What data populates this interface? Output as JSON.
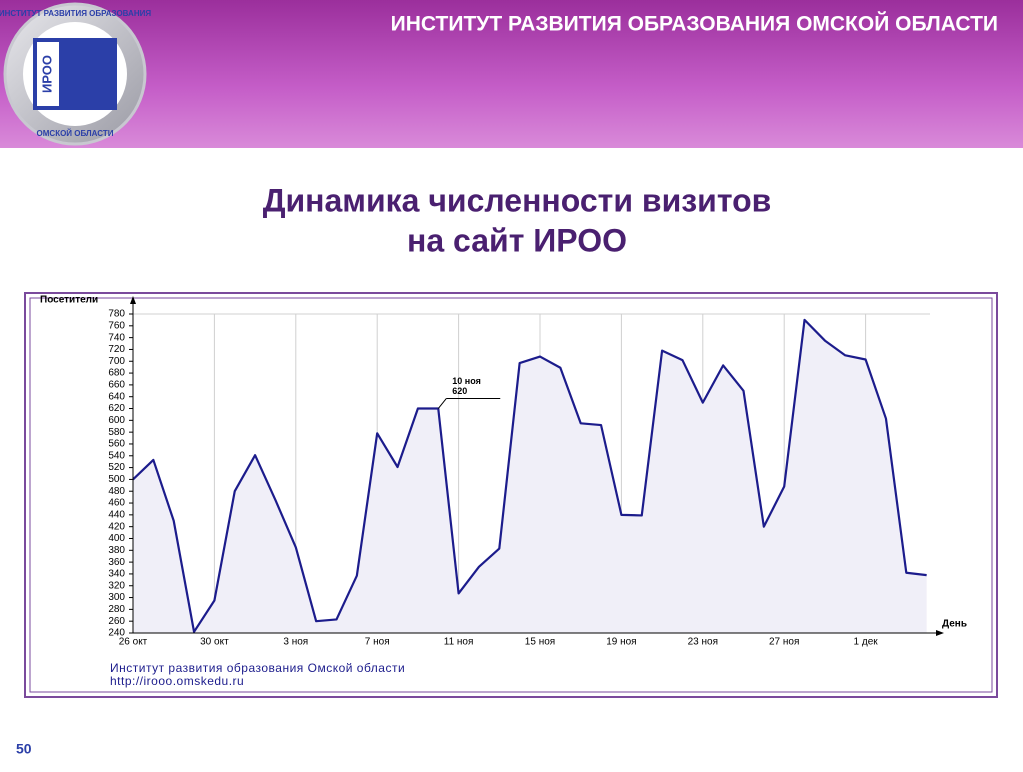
{
  "header": {
    "title": "ИНСТИТУТ РАЗВИТИЯ ОБРАЗОВАНИЯ ОМСКОЙ ОБЛАСТИ",
    "logo_top": "ИНСТИТУТ РАЗВИТИЯ ОБРАЗОВАНИЯ",
    "logo_bottom": "ОМСКОЙ ОБЛАСТИ",
    "logo_mark": "ИРОО"
  },
  "slide": {
    "title_line1": "Динамика численности визитов",
    "title_line2": "на сайт ИРОО",
    "page_number": "50"
  },
  "chart_data": {
    "type": "area",
    "y_label": "Посетители",
    "x_label": "День",
    "footer_line1": "Институт развития образования Омской области",
    "footer_line2": "http://irooo.omskedu.ru",
    "categories": [
      "26 окт",
      null,
      null,
      null,
      "30 окт",
      null,
      null,
      null,
      "3 ноя",
      null,
      null,
      null,
      "7 ноя",
      null,
      null,
      null,
      "11 ноя",
      null,
      null,
      null,
      "15 ноя",
      null,
      null,
      null,
      "19 ноя",
      null,
      null,
      null,
      "23 ноя",
      null,
      null,
      null,
      "27 ноя",
      null,
      null,
      null,
      "1 дек",
      null,
      null,
      null
    ],
    "values": [
      500,
      533,
      430,
      242,
      295,
      480,
      541,
      465,
      385,
      260,
      263,
      337,
      578,
      521,
      620,
      620,
      307,
      352,
      383,
      697,
      708,
      689,
      595,
      592,
      440,
      439,
      718,
      702,
      630,
      693,
      650,
      420,
      488,
      770,
      735,
      710,
      703,
      603,
      342,
      338
    ],
    "color": "#1c1c8c",
    "fill": "#f0eff8",
    "ylim": [
      240,
      780
    ],
    "yticks": [
      240,
      260,
      280,
      300,
      320,
      340,
      360,
      380,
      400,
      420,
      440,
      460,
      480,
      500,
      520,
      540,
      560,
      580,
      600,
      620,
      640,
      660,
      680,
      700,
      720,
      740,
      760,
      780
    ],
    "grid": true,
    "annotation": {
      "date": "10 ноя",
      "value": 620
    }
  }
}
